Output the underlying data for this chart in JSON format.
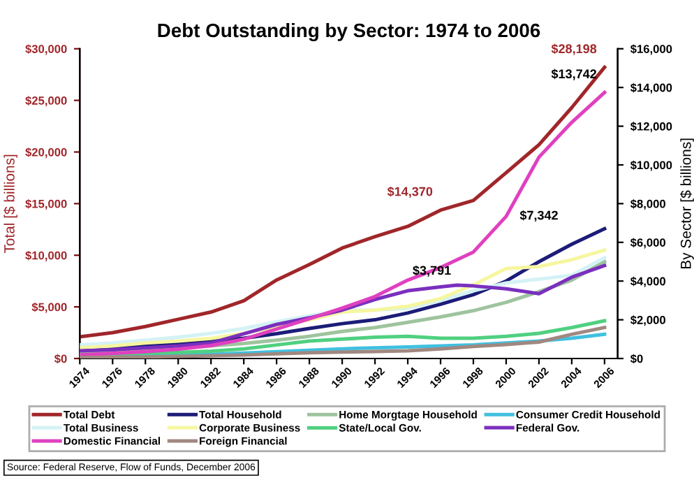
{
  "chart_data": {
    "type": "line",
    "title": "Debt Outstanding by Sector: 1974 to 2006",
    "ylabel": "Total [$ billions]",
    "y2label": "By Sector [$ billions]",
    "x": [
      1974,
      1976,
      1978,
      1980,
      1982,
      1984,
      1986,
      1988,
      1990,
      1992,
      1994,
      1996,
      1998,
      2000,
      2002,
      2004,
      2006
    ],
    "xlim": [
      1974,
      2006.8
    ],
    "xticks": [
      1974,
      1976,
      1978,
      1980,
      1982,
      1984,
      1986,
      1988,
      1990,
      1992,
      1994,
      1996,
      1998,
      2000,
      2002,
      2004,
      2006
    ],
    "ylim": [
      0,
      30000
    ],
    "yticks": [
      {
        "value": 0,
        "label": "$0"
      },
      {
        "value": 5000,
        "label": "$5,000"
      },
      {
        "value": 10000,
        "label": "$10,000"
      },
      {
        "value": 15000,
        "label": "$15,000"
      },
      {
        "value": 20000,
        "label": "$20,000"
      },
      {
        "value": 25000,
        "label": "$25,000"
      },
      {
        "value": 30000,
        "label": "$30,000"
      }
    ],
    "y2lim": [
      0,
      16000
    ],
    "y2ticks": [
      {
        "value": 0,
        "label": "$0"
      },
      {
        "value": 2000,
        "label": "$2,000"
      },
      {
        "value": 4000,
        "label": "$4,000"
      },
      {
        "value": 6000,
        "label": "$6,000"
      },
      {
        "value": 8000,
        "label": "$8,000"
      },
      {
        "value": 10000,
        "label": "$10,000"
      },
      {
        "value": 12000,
        "label": "$12,000"
      },
      {
        "value": 14000,
        "label": "$14,000"
      },
      {
        "value": 16000,
        "label": "$16,000"
      }
    ],
    "series": [
      {
        "name": "Total Debt",
        "color": "#a0262a",
        "values": [
          2100,
          2500,
          3100,
          3800,
          4500,
          5600,
          7600,
          9100,
          10700,
          11800,
          12800,
          14370,
          15300,
          18000,
          20700,
          24300,
          28198
        ],
        "value_labels": [
          null,
          null,
          null,
          null,
          null,
          null,
          null,
          null,
          null,
          null,
          null,
          "$14,370",
          null,
          null,
          null,
          null,
          "$28,198"
        ]
      },
      {
        "name": "Total Household",
        "color": "#1c1c78",
        "axis": "y2",
        "values": [
          430,
          520,
          670,
          800,
          900,
          1050,
          1280,
          1550,
          1800,
          2000,
          2350,
          2800,
          3300,
          4000,
          5000,
          5900,
          6700
        ]
      },
      {
        "name": "Home Morgtage Household",
        "color": "#9ec49e",
        "axis": "y2",
        "values": [
          300,
          370,
          450,
          550,
          650,
          780,
          950,
          1150,
          1400,
          1600,
          1870,
          2150,
          2470,
          2900,
          3450,
          4050,
          5000
        ]
      },
      {
        "name": "Consumer Credit Household",
        "color": "#40c0e0",
        "axis": "y2",
        "values": [
          100,
          120,
          160,
          200,
          220,
          280,
          350,
          420,
          500,
          550,
          600,
          650,
          700,
          800,
          900,
          1050,
          1250
        ]
      },
      {
        "name": "Total Business",
        "color": "#d4f2f6",
        "axis": "y2",
        "values": [
          700,
          800,
          950,
          1100,
          1300,
          1550,
          1900,
          2200,
          2500,
          2500,
          2600,
          3000,
          3500,
          3900,
          4100,
          4300,
          5200
        ]
      },
      {
        "name": "Corporate Business",
        "color": "#f6f6a0",
        "axis": "y2",
        "values": [
          550,
          650,
          800,
          900,
          1040,
          1300,
          1640,
          2000,
          2400,
          2500,
          2700,
          3100,
          3800,
          4650,
          4750,
          5100,
          5600
        ]
      },
      {
        "name": "State/Local Gov.",
        "color": "#50d080",
        "axis": "y2",
        "values": [
          200,
          230,
          280,
          320,
          380,
          500,
          700,
          900,
          1000,
          1100,
          1150,
          1050,
          1050,
          1150,
          1300,
          1600,
          1950
        ]
      },
      {
        "name": "Federal Gov.",
        "color": "#7b2fbe",
        "axis": "y2",
        "x": [
          1974,
          1976,
          1978,
          1980,
          1982,
          1984,
          1986,
          1988,
          1990,
          1992,
          1994,
          1996,
          1997,
          1998,
          2000,
          2002,
          2004,
          2006
        ],
        "values": [
          400,
          450,
          550,
          650,
          800,
          1280,
          1760,
          2100,
          2500,
          3050,
          3500,
          3700,
          3791,
          3750,
          3600,
          3350,
          4200,
          4800
        ],
        "value_labels": [
          null,
          null,
          null,
          null,
          null,
          null,
          null,
          null,
          null,
          null,
          null,
          null,
          "$3,791",
          null,
          null,
          null,
          null,
          null
        ]
      },
      {
        "name": "Domestic Financial",
        "color": "#e040c0",
        "axis": "y2",
        "values": [
          190,
          260,
          350,
          480,
          670,
          1000,
          1520,
          2050,
          2600,
          3200,
          4050,
          4700,
          5500,
          7342,
          10400,
          12200,
          13742
        ],
        "value_labels": [
          null,
          null,
          null,
          null,
          null,
          null,
          null,
          null,
          null,
          null,
          null,
          null,
          null,
          "$7,342",
          null,
          null,
          "$13,742"
        ]
      },
      {
        "name": "Foreign Financial",
        "color": "#a08880",
        "axis": "y2",
        "values": [
          50,
          60,
          80,
          110,
          140,
          180,
          240,
          300,
          330,
          360,
          400,
          500,
          620,
          720,
          850,
          1250,
          1600
        ]
      }
    ],
    "legend": "bottom",
    "grid": false,
    "marker": "none",
    "line_style": "solid",
    "annotations": [
      "Source: Federal Reserve, Flow of Funds, December 2006"
    ]
  }
}
